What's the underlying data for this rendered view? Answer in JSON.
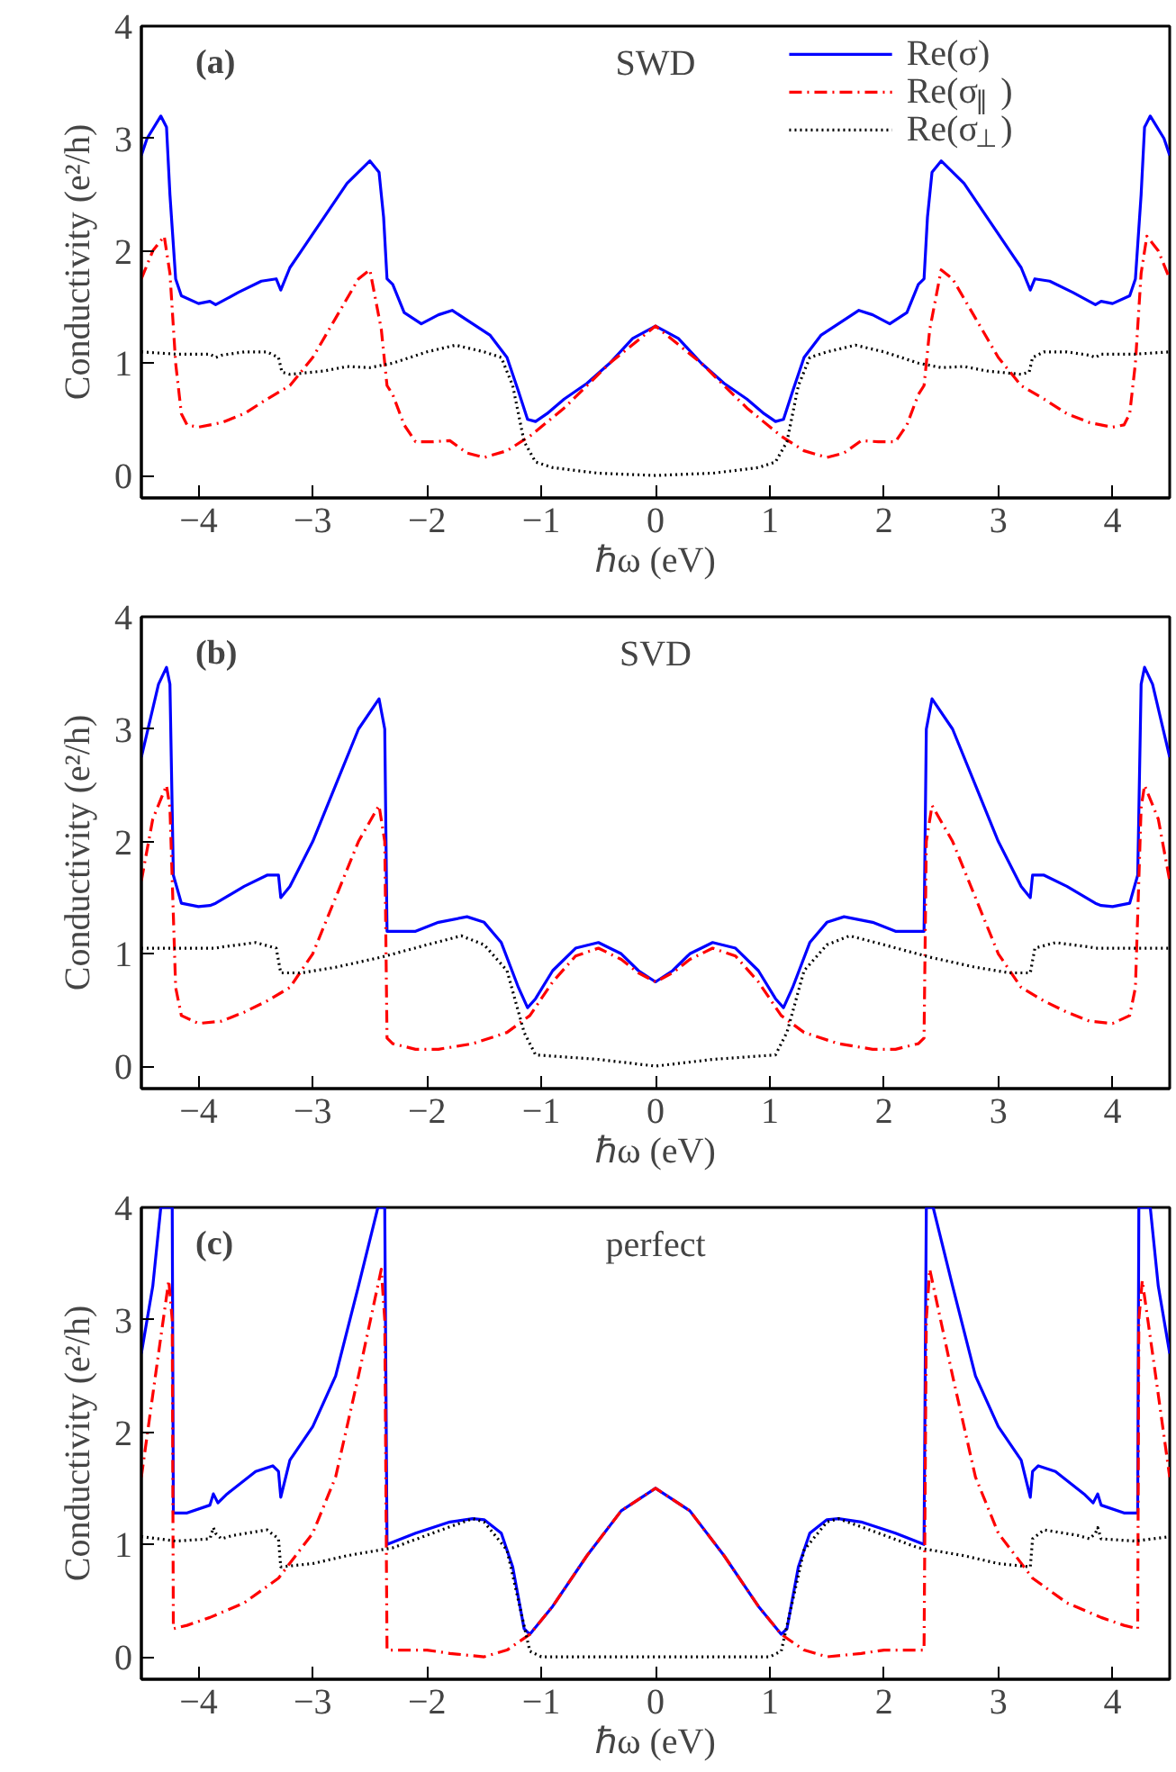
{
  "chart_data": [
    {
      "type": "line",
      "title": "SWD",
      "annotations": [
        "(a)"
      ],
      "xlabel": "ℏω (eV)",
      "ylabel": "Conductivity (e²/h)",
      "xlim": [
        -4.5,
        4.5
      ],
      "ylim": [
        -0.2,
        4
      ],
      "xticks": [
        {
          "value": -4,
          "label": "−4"
        },
        {
          "value": -3,
          "label": "−3"
        },
        {
          "value": -2,
          "label": "−2"
        },
        {
          "value": -1,
          "label": "−1"
        },
        0,
        1,
        2,
        3,
        4
      ],
      "yticks": [
        0,
        1,
        2,
        3,
        4
      ],
      "legend": "top right",
      "series": [
        {
          "name": "Re(σ)",
          "color": "#0000ff",
          "line_style": "solid",
          "x": [
            -4.5,
            -4.45,
            -4.33,
            -4.28,
            -4.25,
            -4.2,
            -4.15,
            -4.0,
            -3.9,
            -3.85,
            -3.65,
            -3.45,
            -3.32,
            -3.28,
            -3.2,
            -3.1,
            -2.9,
            -2.7,
            -2.5,
            -2.42,
            -2.38,
            -2.35,
            -2.3,
            -2.2,
            -2.05,
            -1.9,
            -1.78,
            -1.6,
            -1.45,
            -1.3,
            -1.2,
            -1.12,
            -1.05,
            -0.95,
            -0.8,
            -0.6,
            -0.4,
            -0.2,
            0,
            0.2,
            0.4,
            0.6,
            0.8,
            0.95,
            1.05,
            1.12,
            1.2,
            1.3,
            1.45,
            1.6,
            1.78,
            1.9,
            2.05,
            2.2,
            2.3,
            2.35,
            2.38,
            2.42,
            2.5,
            2.7,
            2.9,
            3.1,
            3.2,
            3.28,
            3.32,
            3.45,
            3.65,
            3.85,
            3.9,
            4.0,
            4.15,
            4.2,
            4.25,
            4.28,
            4.33,
            4.45,
            4.5
          ],
          "values": [
            2.85,
            3.0,
            3.2,
            3.1,
            2.5,
            1.75,
            1.6,
            1.53,
            1.55,
            1.52,
            1.63,
            1.73,
            1.75,
            1.65,
            1.85,
            2.0,
            2.3,
            2.6,
            2.8,
            2.7,
            2.3,
            1.75,
            1.7,
            1.45,
            1.35,
            1.43,
            1.47,
            1.35,
            1.25,
            1.05,
            0.75,
            0.5,
            0.48,
            0.55,
            0.68,
            0.82,
            1.0,
            1.22,
            1.33,
            1.22,
            1.0,
            0.82,
            0.68,
            0.55,
            0.48,
            0.5,
            0.75,
            1.05,
            1.25,
            1.35,
            1.47,
            1.43,
            1.35,
            1.45,
            1.7,
            1.75,
            2.3,
            2.7,
            2.8,
            2.6,
            2.3,
            2.0,
            1.85,
            1.65,
            1.75,
            1.73,
            1.63,
            1.52,
            1.55,
            1.53,
            1.6,
            1.75,
            2.5,
            3.1,
            3.2,
            3.0,
            2.85
          ]
        },
        {
          "name": "Re(σ$_{∥}$)",
          "color": "#ff0000",
          "line_style": "dashdot",
          "x": [
            -4.5,
            -4.4,
            -4.3,
            -4.25,
            -4.2,
            -4.15,
            -4.1,
            -4.0,
            -3.8,
            -3.6,
            -3.4,
            -3.2,
            -3.0,
            -2.8,
            -2.6,
            -2.5,
            -2.4,
            -2.35,
            -2.3,
            -2.2,
            -2.1,
            -1.95,
            -1.8,
            -1.65,
            -1.5,
            -1.3,
            -1.1,
            -0.8,
            -0.4,
            0,
            0.4,
            0.8,
            1.1,
            1.3,
            1.5,
            1.65,
            1.8,
            1.95,
            2.1,
            2.2,
            2.3,
            2.35,
            2.4,
            2.5,
            2.6,
            2.8,
            3.0,
            3.2,
            3.4,
            3.6,
            3.8,
            4.0,
            4.1,
            4.15,
            4.2,
            4.25,
            4.3,
            4.4,
            4.5
          ],
          "values": [
            1.75,
            2.0,
            2.13,
            1.8,
            1.0,
            0.55,
            0.45,
            0.43,
            0.47,
            0.55,
            0.68,
            0.8,
            1.05,
            1.4,
            1.75,
            1.83,
            1.3,
            0.8,
            0.72,
            0.45,
            0.3,
            0.3,
            0.31,
            0.2,
            0.16,
            0.22,
            0.35,
            0.6,
            1.0,
            1.33,
            1.0,
            0.6,
            0.35,
            0.22,
            0.16,
            0.2,
            0.31,
            0.3,
            0.3,
            0.45,
            0.72,
            0.8,
            1.3,
            1.83,
            1.75,
            1.4,
            1.05,
            0.8,
            0.68,
            0.55,
            0.47,
            0.43,
            0.45,
            0.55,
            1.0,
            1.8,
            2.13,
            2.0,
            1.75
          ]
        },
        {
          "name": "Re(σ$_{⊥}$)",
          "color": "#000000",
          "line_style": "dotted",
          "x": [
            -4.5,
            -4.2,
            -3.9,
            -3.85,
            -3.8,
            -3.6,
            -3.4,
            -3.3,
            -3.27,
            -3.2,
            -2.9,
            -2.7,
            -2.5,
            -2.3,
            -2.0,
            -1.75,
            -1.5,
            -1.35,
            -1.25,
            -1.15,
            -1.05,
            -0.9,
            -0.5,
            0,
            0.5,
            0.9,
            1.05,
            1.15,
            1.25,
            1.35,
            1.5,
            1.75,
            2.0,
            2.3,
            2.5,
            2.7,
            2.9,
            3.2,
            3.27,
            3.3,
            3.4,
            3.6,
            3.8,
            3.85,
            3.9,
            4.2,
            4.5
          ],
          "values": [
            1.1,
            1.08,
            1.08,
            1.05,
            1.07,
            1.1,
            1.1,
            1.05,
            0.92,
            0.9,
            0.93,
            0.97,
            0.96,
            1.0,
            1.1,
            1.16,
            1.1,
            1.05,
            0.8,
            0.3,
            0.12,
            0.07,
            0.02,
            0.0,
            0.02,
            0.07,
            0.12,
            0.3,
            0.8,
            1.05,
            1.1,
            1.16,
            1.1,
            1.0,
            0.96,
            0.97,
            0.93,
            0.9,
            0.92,
            1.05,
            1.1,
            1.1,
            1.07,
            1.05,
            1.08,
            1.08,
            1.1
          ]
        }
      ]
    },
    {
      "type": "line",
      "title": "SVD",
      "annotations": [
        "(b)"
      ],
      "xlabel": "ℏω (eV)",
      "ylabel": "Conductivity (e²/h)",
      "xlim": [
        -4.5,
        4.5
      ],
      "ylim": [
        -0.2,
        4
      ],
      "xticks": [
        {
          "value": -4,
          "label": "−4"
        },
        {
          "value": -3,
          "label": "−3"
        },
        {
          "value": -2,
          "label": "−2"
        },
        {
          "value": -1,
          "label": "−1"
        },
        0,
        1,
        2,
        3,
        4
      ],
      "yticks": [
        0,
        1,
        2,
        3,
        4
      ],
      "series": [
        {
          "color": "#0000ff",
          "line_style": "solid",
          "x": [
            -4.5,
            -4.35,
            -4.28,
            -4.25,
            -4.22,
            -4.15,
            -4.0,
            -3.9,
            -3.85,
            -3.6,
            -3.4,
            -3.3,
            -3.28,
            -3.2,
            -3.0,
            -2.8,
            -2.6,
            -2.42,
            -2.37,
            -2.35,
            -2.1,
            -1.9,
            -1.65,
            -1.5,
            -1.35,
            -1.2,
            -1.12,
            -1.05,
            -0.9,
            -0.7,
            -0.5,
            -0.3,
            -0.15,
            0,
            0.15,
            0.3,
            0.5,
            0.7,
            0.9,
            1.05,
            1.12,
            1.2,
            1.35,
            1.5,
            1.65,
            1.9,
            2.1,
            2.35,
            2.37,
            2.42,
            2.6,
            2.8,
            3.0,
            3.2,
            3.28,
            3.3,
            3.4,
            3.6,
            3.85,
            3.9,
            4.0,
            4.15,
            4.22,
            4.25,
            4.28,
            4.35,
            4.5
          ],
          "values": [
            2.75,
            3.4,
            3.55,
            3.4,
            1.7,
            1.45,
            1.42,
            1.43,
            1.45,
            1.6,
            1.7,
            1.7,
            1.5,
            1.6,
            2.0,
            2.5,
            3.0,
            3.27,
            3.0,
            1.2,
            1.2,
            1.28,
            1.33,
            1.28,
            1.1,
            0.7,
            0.52,
            0.6,
            0.85,
            1.05,
            1.1,
            1.0,
            0.85,
            0.75,
            0.85,
            1.0,
            1.1,
            1.05,
            0.85,
            0.6,
            0.52,
            0.7,
            1.1,
            1.28,
            1.33,
            1.28,
            1.2,
            1.2,
            3.0,
            3.27,
            3.0,
            2.5,
            2.0,
            1.6,
            1.5,
            1.7,
            1.7,
            1.6,
            1.45,
            1.43,
            1.42,
            1.45,
            1.7,
            3.4,
            3.55,
            3.4,
            2.75
          ]
        },
        {
          "color": "#ff0000",
          "line_style": "dashdot",
          "x": [
            -4.5,
            -4.4,
            -4.28,
            -4.25,
            -4.2,
            -4.15,
            -4.0,
            -3.8,
            -3.6,
            -3.4,
            -3.2,
            -3.0,
            -2.8,
            -2.6,
            -2.42,
            -2.37,
            -2.35,
            -2.3,
            -2.1,
            -1.9,
            -1.6,
            -1.3,
            -1.1,
            -0.9,
            -0.7,
            -0.5,
            -0.3,
            -0.15,
            0,
            0.15,
            0.3,
            0.5,
            0.7,
            0.9,
            1.1,
            1.3,
            1.6,
            1.9,
            2.1,
            2.3,
            2.35,
            2.37,
            2.42,
            2.6,
            2.8,
            3.0,
            3.2,
            3.4,
            3.6,
            3.8,
            4.0,
            4.15,
            4.2,
            4.25,
            4.28,
            4.4,
            4.5
          ],
          "values": [
            1.65,
            2.2,
            2.5,
            2.3,
            0.7,
            0.45,
            0.38,
            0.4,
            0.48,
            0.58,
            0.7,
            1.0,
            1.5,
            2.0,
            2.32,
            2.0,
            0.25,
            0.2,
            0.15,
            0.15,
            0.2,
            0.3,
            0.45,
            0.75,
            0.98,
            1.05,
            0.95,
            0.83,
            0.75,
            0.83,
            0.95,
            1.05,
            0.98,
            0.75,
            0.45,
            0.3,
            0.2,
            0.15,
            0.15,
            0.2,
            0.25,
            2.0,
            2.32,
            2.0,
            1.5,
            1.0,
            0.7,
            0.58,
            0.48,
            0.4,
            0.38,
            0.45,
            0.7,
            2.3,
            2.5,
            2.2,
            1.65
          ]
        },
        {
          "color": "#000000",
          "line_style": "dotted",
          "x": [
            -4.5,
            -3.9,
            -3.85,
            -3.8,
            -3.5,
            -3.32,
            -3.28,
            -3.1,
            -2.8,
            -2.4,
            -2.0,
            -1.7,
            -1.5,
            -1.3,
            -1.15,
            -1.05,
            -0.5,
            0,
            0.5,
            1.05,
            1.15,
            1.3,
            1.5,
            1.7,
            2.0,
            2.4,
            2.8,
            3.1,
            3.28,
            3.32,
            3.5,
            3.8,
            3.85,
            3.9,
            4.5
          ],
          "values": [
            1.05,
            1.05,
            1.05,
            1.06,
            1.1,
            1.05,
            0.83,
            0.83,
            0.88,
            0.97,
            1.08,
            1.16,
            1.08,
            0.85,
            0.3,
            0.1,
            0.06,
            0.0,
            0.06,
            0.1,
            0.3,
            0.85,
            1.08,
            1.16,
            1.08,
            0.97,
            0.88,
            0.83,
            0.83,
            1.05,
            1.1,
            1.06,
            1.05,
            1.05,
            1.05
          ]
        }
      ]
    },
    {
      "type": "line",
      "title": "perfect",
      "annotations": [
        "(c)"
      ],
      "xlabel": "ℏω (eV)",
      "ylabel": "Conductivity (e²/h)",
      "xlim": [
        -4.5,
        4.5
      ],
      "ylim": [
        -0.2,
        4
      ],
      "xticks": [
        {
          "value": -4,
          "label": "−4"
        },
        {
          "value": -3,
          "label": "−3"
        },
        {
          "value": -2,
          "label": "−2"
        },
        {
          "value": -1,
          "label": "−1"
        },
        0,
        1,
        2,
        3,
        4
      ],
      "yticks": [
        0,
        1,
        2,
        3,
        4
      ],
      "series": [
        {
          "color": "#0000ff",
          "line_style": "solid",
          "x": [
            -4.5,
            -4.4,
            -4.33,
            -4.23,
            -4.22,
            -4.1,
            -3.9,
            -3.87,
            -3.83,
            -3.75,
            -3.5,
            -3.35,
            -3.3,
            -3.28,
            -3.2,
            -3.0,
            -2.8,
            -2.6,
            -2.43,
            -2.37,
            -2.35,
            -2.1,
            -1.8,
            -1.6,
            -1.5,
            -1.35,
            -1.25,
            -1.15,
            -1.1,
            -0.9,
            -0.6,
            -0.3,
            0,
            0.3,
            0.6,
            0.9,
            1.1,
            1.15,
            1.25,
            1.35,
            1.5,
            1.6,
            1.8,
            2.1,
            2.35,
            2.37,
            2.43,
            2.6,
            2.8,
            3.0,
            3.2,
            3.28,
            3.3,
            3.35,
            3.5,
            3.75,
            3.83,
            3.87,
            3.9,
            4.1,
            4.22,
            4.23,
            4.33,
            4.4,
            4.5
          ],
          "values": [
            2.7,
            3.3,
            4.0,
            4.0,
            1.28,
            1.28,
            1.35,
            1.45,
            1.37,
            1.45,
            1.65,
            1.7,
            1.65,
            1.42,
            1.75,
            2.05,
            2.5,
            3.3,
            4.0,
            4.0,
            1.0,
            1.1,
            1.2,
            1.23,
            1.22,
            1.1,
            0.8,
            0.25,
            0.2,
            0.45,
            0.9,
            1.3,
            1.5,
            1.3,
            0.9,
            0.45,
            0.2,
            0.25,
            0.8,
            1.1,
            1.22,
            1.23,
            1.2,
            1.1,
            1.0,
            4.0,
            4.0,
            3.3,
            2.5,
            2.05,
            1.75,
            1.42,
            1.65,
            1.7,
            1.65,
            1.45,
            1.37,
            1.45,
            1.35,
            1.28,
            1.28,
            4.0,
            4.0,
            3.3,
            2.7
          ]
        },
        {
          "color": "#ff0000",
          "line_style": "dashdot",
          "x": [
            -4.5,
            -4.35,
            -4.26,
            -4.23,
            -4.22,
            -4.1,
            -3.9,
            -3.6,
            -3.3,
            -3.0,
            -2.8,
            -2.6,
            -2.4,
            -2.37,
            -2.35,
            -2.0,
            -1.8,
            -1.5,
            -1.3,
            -1.1,
            -0.9,
            -0.6,
            -0.3,
            0,
            0.3,
            0.6,
            0.9,
            1.1,
            1.3,
            1.5,
            1.8,
            2.0,
            2.35,
            2.37,
            2.4,
            2.6,
            2.8,
            3.0,
            3.3,
            3.6,
            3.9,
            4.1,
            4.22,
            4.23,
            4.26,
            4.35,
            4.5
          ],
          "values": [
            1.6,
            2.7,
            3.35,
            3.0,
            0.25,
            0.28,
            0.35,
            0.48,
            0.7,
            1.1,
            1.6,
            2.5,
            3.45,
            3.0,
            0.06,
            0.06,
            0.03,
            0.0,
            0.06,
            0.2,
            0.45,
            0.9,
            1.3,
            1.5,
            1.3,
            0.9,
            0.45,
            0.2,
            0.06,
            0.0,
            0.03,
            0.06,
            0.06,
            3.0,
            3.45,
            2.5,
            1.6,
            1.1,
            0.7,
            0.48,
            0.35,
            0.28,
            0.25,
            3.0,
            3.35,
            2.7,
            1.6
          ]
        },
        {
          "color": "#000000",
          "line_style": "dotted",
          "x": [
            -4.5,
            -4.2,
            -3.9,
            -3.87,
            -3.85,
            -3.8,
            -3.7,
            -3.4,
            -3.3,
            -3.28,
            -3.0,
            -2.7,
            -2.3,
            -1.9,
            -1.6,
            -1.5,
            -1.3,
            -1.2,
            -1.1,
            -1.0,
            0,
            1.0,
            1.1,
            1.2,
            1.3,
            1.5,
            1.6,
            1.9,
            2.3,
            2.7,
            3.0,
            3.28,
            3.3,
            3.4,
            3.7,
            3.8,
            3.85,
            3.87,
            3.9,
            4.2,
            4.5
          ],
          "values": [
            1.07,
            1.03,
            1.05,
            1.15,
            1.1,
            1.05,
            1.08,
            1.13,
            1.05,
            0.8,
            0.83,
            0.9,
            0.97,
            1.12,
            1.23,
            1.2,
            0.95,
            0.5,
            0.05,
            0.0,
            0.0,
            0.0,
            0.05,
            0.5,
            0.95,
            1.2,
            1.23,
            1.12,
            0.97,
            0.9,
            0.83,
            0.8,
            1.05,
            1.13,
            1.08,
            1.05,
            1.1,
            1.15,
            1.05,
            1.03,
            1.07
          ]
        }
      ]
    }
  ]
}
